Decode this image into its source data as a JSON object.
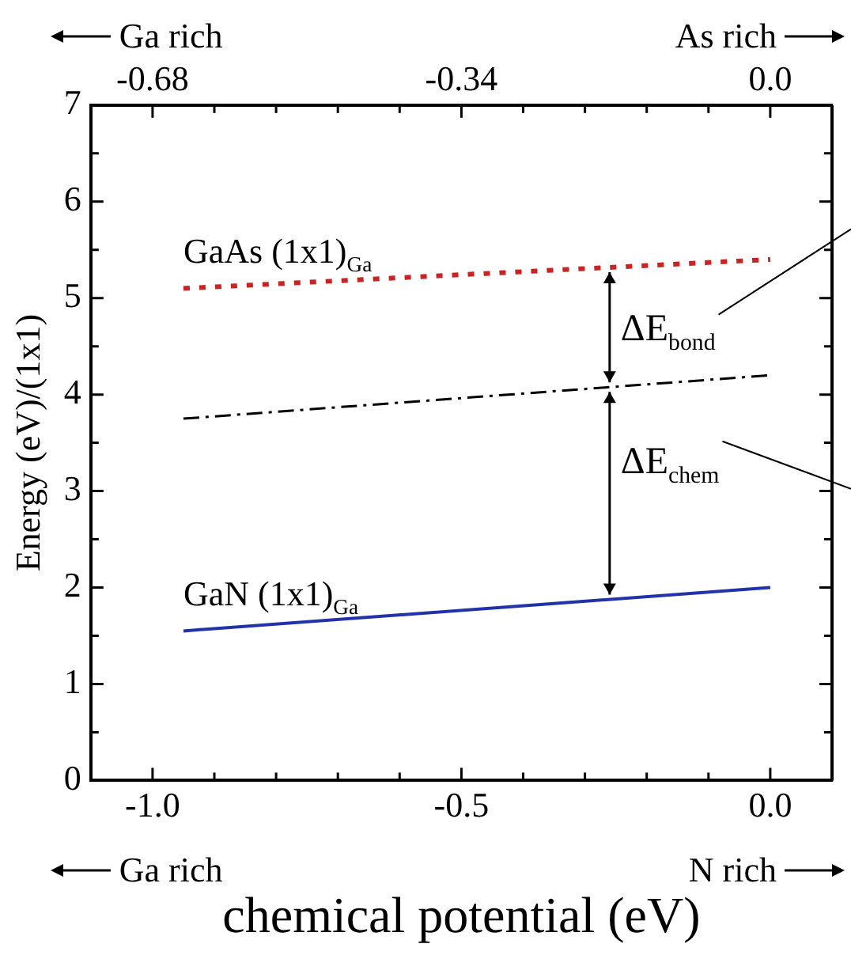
{
  "chart_data": {
    "type": "line",
    "xlabel": "chemical potential (eV)",
    "ylabel": "Energy (eV)/(1x1)",
    "xlim": [
      -1.1,
      0.1
    ],
    "xticks": [
      {
        "value": -1.0,
        "label": "-1.0"
      },
      {
        "value": -0.9,
        "label": null
      },
      {
        "value": -0.8,
        "label": null
      },
      {
        "value": -0.7,
        "label": null
      },
      {
        "value": -0.6,
        "label": null
      },
      {
        "value": -0.5,
        "label": "-0.5"
      },
      {
        "value": -0.4,
        "label": null
      },
      {
        "value": -0.3,
        "label": null
      },
      {
        "value": -0.2,
        "label": null
      },
      {
        "value": -0.1,
        "label": null
      },
      {
        "value": 0.0,
        "label": "0.0"
      }
    ],
    "x2lim": [
      -0.748,
      0.068
    ],
    "x2ticks": [
      -0.68,
      {
        "value": -0.612,
        "label": null
      },
      {
        "value": -0.544,
        "label": null
      },
      {
        "value": -0.476,
        "label": null
      },
      {
        "value": -0.408,
        "label": null
      },
      -0.34,
      {
        "value": -0.272,
        "label": null
      },
      {
        "value": -0.204,
        "label": null
      },
      {
        "value": -0.136,
        "label": null
      },
      {
        "value": -0.068,
        "label": null
      },
      {
        "value": 0.0,
        "label": "0.0"
      }
    ],
    "ylim": [
      0,
      7
    ],
    "yticks": [
      0,
      {
        "value": 0.5,
        "label": null
      },
      1,
      {
        "value": 1.5,
        "label": null
      },
      2,
      {
        "value": 2.5,
        "label": null
      },
      3,
      {
        "value": 3.5,
        "label": null
      },
      4,
      {
        "value": 4.5,
        "label": null
      },
      5,
      {
        "value": 5.5,
        "label": null
      },
      6,
      {
        "value": 6.5,
        "label": null
      },
      7
    ],
    "x": [
      -0.95,
      0.0
    ],
    "series": [
      {
        "name": "GaAs (1x1)$_{Ga}$",
        "color": "#cc2222",
        "values": [
          5.1,
          5.4
        ],
        "line_style": "dotted"
      },
      {
        "color": "#000000",
        "values": [
          3.75,
          4.2
        ],
        "line_style": "dashed"
      },
      {
        "name": "GaN (1x1)$_{Ga}$",
        "color": "#2233aa",
        "values": [
          1.55,
          2.0
        ],
        "line_style": "solid"
      }
    ],
    "legend": false,
    "annotations": [
      "Ga rich",
      "As rich",
      "Ga rich",
      "N rich",
      "ΔE$_{bond}$",
      "ΔE$_{chem}$"
    ]
  }
}
